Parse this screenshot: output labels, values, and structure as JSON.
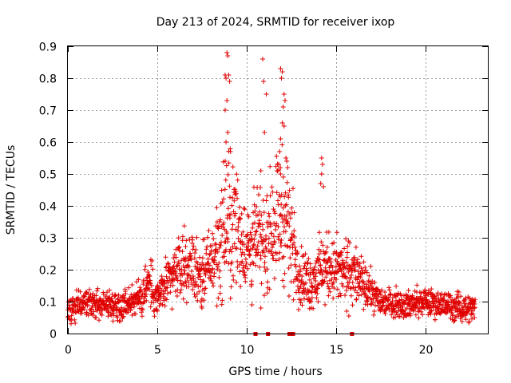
{
  "chart_data": {
    "type": "scatter",
    "title": "Day 213 of 2024, SRMTID for receiver ixop",
    "xlabel": "GPS time / hours",
    "ylabel": "SRMTID / TECUs",
    "xlim": [
      0,
      23.5
    ],
    "ylim": [
      0,
      0.9
    ],
    "xticks": [
      0,
      5,
      10,
      15,
      20
    ],
    "yticks": [
      0,
      0.1,
      0.2,
      0.3,
      0.4,
      0.5,
      0.6,
      0.7,
      0.8,
      0.9
    ],
    "xtick_labels": [
      "0",
      "5",
      "10",
      "15",
      "20"
    ],
    "ytick_labels": [
      "0",
      "0.1",
      "0.2",
      "0.3",
      "0.4",
      "0.5",
      "0.6",
      "0.7",
      "0.8",
      "0.9"
    ],
    "grid": true,
    "marker": "+",
    "color": "#e00000",
    "series": [
      {
        "name": "SRMTID",
        "envelope_hours": [
          0,
          1,
          2,
          3,
          4,
          4.5,
          5,
          5.5,
          6,
          6.5,
          7,
          7.5,
          8,
          8.5,
          9,
          9.5,
          10,
          10.5,
          11,
          11.5,
          12,
          12.5,
          13,
          13.5,
          14,
          14.5,
          15,
          15.5,
          16,
          16.5,
          17,
          17.5,
          18,
          19,
          20,
          21,
          22,
          22.8
        ],
        "envelope_median": [
          0.08,
          0.09,
          0.09,
          0.09,
          0.11,
          0.16,
          0.11,
          0.15,
          0.19,
          0.22,
          0.21,
          0.18,
          0.22,
          0.28,
          0.36,
          0.33,
          0.26,
          0.3,
          0.28,
          0.36,
          0.38,
          0.3,
          0.18,
          0.16,
          0.19,
          0.21,
          0.2,
          0.19,
          0.19,
          0.15,
          0.13,
          0.1,
          0.1,
          0.09,
          0.1,
          0.09,
          0.08,
          0.08
        ],
        "envelope_spread": [
          0.03,
          0.03,
          0.03,
          0.03,
          0.04,
          0.06,
          0.04,
          0.05,
          0.06,
          0.07,
          0.07,
          0.06,
          0.08,
          0.12,
          0.16,
          0.12,
          0.09,
          0.1,
          0.1,
          0.13,
          0.14,
          0.12,
          0.06,
          0.06,
          0.07,
          0.07,
          0.07,
          0.07,
          0.07,
          0.05,
          0.04,
          0.03,
          0.03,
          0.03,
          0.03,
          0.03,
          0.03,
          0.03
        ],
        "peak_points": [
          [
            8.9,
            0.88
          ],
          [
            8.95,
            0.87
          ],
          [
            8.8,
            0.81
          ],
          [
            9.0,
            0.81
          ],
          [
            8.85,
            0.8
          ],
          [
            9.05,
            0.79
          ],
          [
            8.9,
            0.73
          ],
          [
            8.8,
            0.7
          ],
          [
            8.95,
            0.63
          ],
          [
            8.85,
            0.6
          ],
          [
            9.1,
            0.57
          ],
          [
            8.8,
            0.54
          ],
          [
            10.9,
            0.86
          ],
          [
            10.95,
            0.79
          ],
          [
            11.1,
            0.75
          ],
          [
            11.0,
            0.63
          ],
          [
            10.8,
            0.51
          ],
          [
            11.9,
            0.83
          ],
          [
            12.0,
            0.82
          ],
          [
            11.95,
            0.8
          ],
          [
            12.1,
            0.75
          ],
          [
            12.15,
            0.73
          ],
          [
            12.05,
            0.71
          ],
          [
            12.0,
            0.66
          ],
          [
            12.1,
            0.65
          ],
          [
            11.9,
            0.61
          ],
          [
            11.85,
            0.57
          ],
          [
            12.2,
            0.55
          ],
          [
            12.25,
            0.54
          ],
          [
            11.8,
            0.53
          ],
          [
            11.9,
            0.5
          ],
          [
            12.3,
            0.52
          ],
          [
            14.2,
            0.55
          ],
          [
            14.25,
            0.53
          ],
          [
            14.2,
            0.5
          ],
          [
            14.15,
            0.47
          ],
          [
            14.3,
            0.46
          ]
        ],
        "low_points": [
          [
            7.5,
            0.08
          ],
          [
            9.1,
            0.11
          ],
          [
            10.3,
            0.09
          ],
          [
            10.8,
            0.08
          ],
          [
            13.6,
            0.1
          ],
          [
            14.0,
            0.1
          ],
          [
            15.6,
            0.07
          ]
        ]
      }
    ],
    "gap_markers_hours": [
      10.5,
      11.2,
      12.4,
      12.6,
      15.9
    ]
  }
}
